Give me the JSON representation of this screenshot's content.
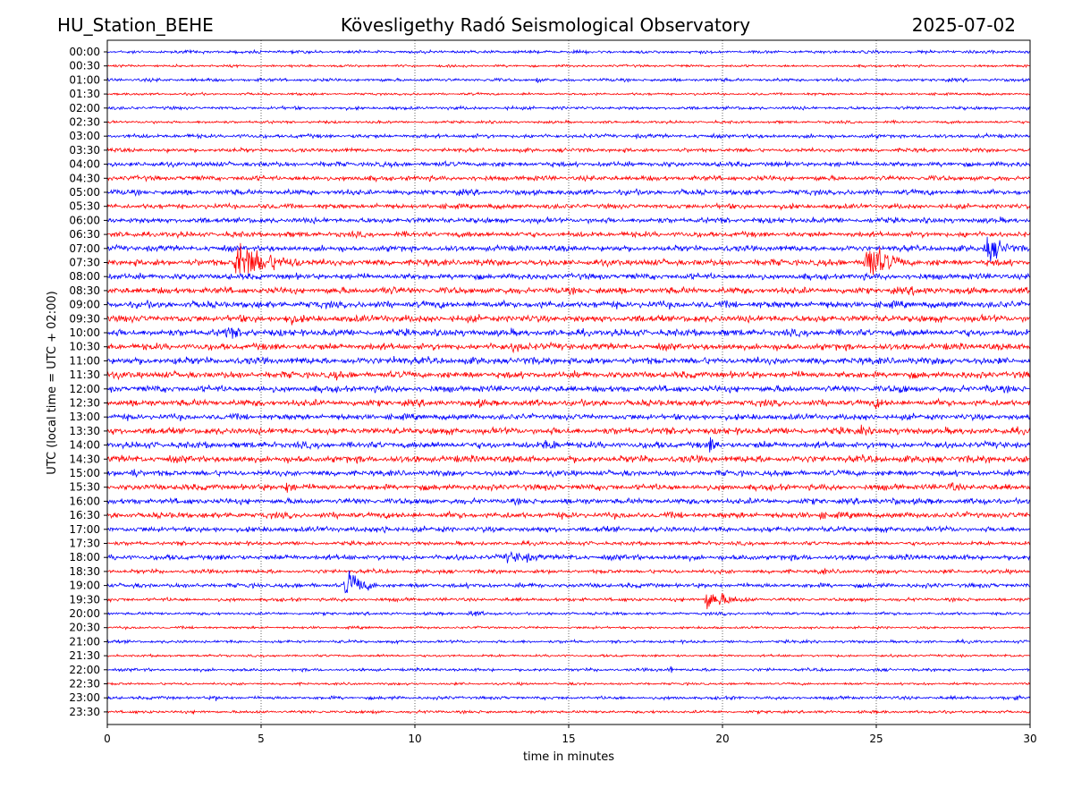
{
  "header": {
    "station": "HU_Station_BEHE",
    "observatory": "Kövesligethy Radó Seismological Observatory",
    "date": "2025-07-02"
  },
  "chart_data": {
    "type": "line",
    "xlabel": "time in minutes",
    "ylabel": "UTC (local time = UTC + 02:00)",
    "xlim": [
      0,
      30
    ],
    "x_ticks": [
      "0",
      "5",
      "10",
      "15",
      "20",
      "25",
      "30"
    ],
    "grid": "vertical dotted lines at x = 5, 10, 15, 20, 25",
    "colors": {
      "even_rows": "#0000ff",
      "odd_rows": "#ff0000"
    },
    "rows": [
      {
        "label": "00:00",
        "color": "blue"
      },
      {
        "label": "00:30",
        "color": "red"
      },
      {
        "label": "01:00",
        "color": "blue"
      },
      {
        "label": "01:30",
        "color": "red"
      },
      {
        "label": "02:00",
        "color": "blue"
      },
      {
        "label": "02:30",
        "color": "red"
      },
      {
        "label": "03:00",
        "color": "blue"
      },
      {
        "label": "03:30",
        "color": "red"
      },
      {
        "label": "04:00",
        "color": "blue"
      },
      {
        "label": "04:30",
        "color": "red"
      },
      {
        "label": "05:00",
        "color": "blue"
      },
      {
        "label": "05:30",
        "color": "red"
      },
      {
        "label": "06:00",
        "color": "blue"
      },
      {
        "label": "06:30",
        "color": "red"
      },
      {
        "label": "07:00",
        "color": "blue"
      },
      {
        "label": "07:30",
        "color": "red"
      },
      {
        "label": "08:00",
        "color": "blue"
      },
      {
        "label": "08:30",
        "color": "red"
      },
      {
        "label": "09:00",
        "color": "blue"
      },
      {
        "label": "09:30",
        "color": "red"
      },
      {
        "label": "10:00",
        "color": "blue"
      },
      {
        "label": "10:30",
        "color": "red"
      },
      {
        "label": "11:00",
        "color": "blue"
      },
      {
        "label": "11:30",
        "color": "red"
      },
      {
        "label": "12:00",
        "color": "blue"
      },
      {
        "label": "12:30",
        "color": "red"
      },
      {
        "label": "13:00",
        "color": "blue"
      },
      {
        "label": "13:30",
        "color": "red"
      },
      {
        "label": "14:00",
        "color": "blue"
      },
      {
        "label": "14:30",
        "color": "red"
      },
      {
        "label": "15:00",
        "color": "blue"
      },
      {
        "label": "15:30",
        "color": "red"
      },
      {
        "label": "16:00",
        "color": "blue"
      },
      {
        "label": "16:30",
        "color": "red"
      },
      {
        "label": "17:00",
        "color": "blue"
      },
      {
        "label": "17:30",
        "color": "red"
      },
      {
        "label": "18:00",
        "color": "blue"
      },
      {
        "label": "18:30",
        "color": "red"
      },
      {
        "label": "19:00",
        "color": "blue"
      },
      {
        "label": "19:30",
        "color": "red"
      },
      {
        "label": "20:00",
        "color": "blue"
      },
      {
        "label": "20:30",
        "color": "red"
      },
      {
        "label": "21:00",
        "color": "blue"
      },
      {
        "label": "21:30",
        "color": "red"
      },
      {
        "label": "22:00",
        "color": "blue"
      },
      {
        "label": "22:30",
        "color": "red"
      },
      {
        "label": "23:00",
        "color": "blue"
      },
      {
        "label": "23:30",
        "color": "red"
      }
    ],
    "noise_level": [
      1.2,
      1.0,
      1.3,
      1.0,
      1.3,
      1.1,
      1.6,
      1.6,
      2.0,
      2.0,
      2.2,
      2.0,
      2.2,
      2.2,
      2.4,
      2.6,
      2.4,
      2.6,
      2.8,
      2.8,
      2.8,
      2.7,
      2.8,
      2.7,
      2.6,
      2.6,
      2.4,
      2.7,
      2.6,
      2.8,
      2.3,
      2.4,
      2.3,
      2.4,
      2.2,
      1.6,
      2.2,
      1.6,
      1.8,
      1.4,
      1.2,
      1.0,
      1.2,
      1.0,
      1.2,
      1.0,
      1.3,
      1.2
    ],
    "events": [
      {
        "row": "01:00",
        "t": 14.0,
        "amplitude": 3,
        "duration": 0.3
      },
      {
        "row": "04:30",
        "t": 7.7,
        "amplitude": 3,
        "duration": 0.5
      },
      {
        "row": "06:30",
        "t": 27.8,
        "amplitude": 4,
        "duration": 1.5
      },
      {
        "row": "07:00",
        "t": 28.6,
        "amplitude": 13,
        "duration": 2.0
      },
      {
        "row": "07:30",
        "t": 4.2,
        "amplitude": 20,
        "duration": 3.5
      },
      {
        "row": "07:30",
        "t": 24.7,
        "amplitude": 22,
        "duration": 2.0
      },
      {
        "row": "08:30",
        "t": 9.0,
        "amplitude": 6,
        "duration": 2.5
      },
      {
        "row": "08:30",
        "t": 16.0,
        "amplitude": 5,
        "duration": 1.0
      },
      {
        "row": "08:30",
        "t": 26.2,
        "amplitude": 5,
        "duration": 3.5
      },
      {
        "row": "09:30",
        "t": 5.8,
        "amplitude": 6,
        "duration": 2.5
      },
      {
        "row": "09:30",
        "t": 9.0,
        "amplitude": 5,
        "duration": 0.6
      },
      {
        "row": "10:00",
        "t": 3.8,
        "amplitude": 7,
        "duration": 3.0
      },
      {
        "row": "10:30",
        "t": 13.2,
        "amplitude": 5,
        "duration": 3.0
      },
      {
        "row": "11:00",
        "t": 2.2,
        "amplitude": 5,
        "duration": 1.0
      },
      {
        "row": "11:00",
        "t": 9.3,
        "amplitude": 5,
        "duration": 2.5
      },
      {
        "row": "11:00",
        "t": 23.5,
        "amplitude": 4,
        "duration": 0.6
      },
      {
        "row": "11:30",
        "t": 7.4,
        "amplitude": 5,
        "duration": 1.5
      },
      {
        "row": "12:00",
        "t": 25.8,
        "amplitude": 6,
        "duration": 1.0
      },
      {
        "row": "12:00",
        "t": 28.6,
        "amplitude": 5,
        "duration": 1.5
      },
      {
        "row": "12:30",
        "t": 12.0,
        "amplitude": 5,
        "duration": 1.5
      },
      {
        "row": "12:30",
        "t": 25.0,
        "amplitude": 6,
        "duration": 1.5
      },
      {
        "row": "13:30",
        "t": 24.5,
        "amplitude": 5,
        "duration": 1.5
      },
      {
        "row": "14:00",
        "t": 14.2,
        "amplitude": 6,
        "duration": 2.5
      },
      {
        "row": "14:00",
        "t": 19.6,
        "amplitude": 9,
        "duration": 1.0
      },
      {
        "row": "14:00",
        "t": 21.2,
        "amplitude": 5,
        "duration": 1.5
      },
      {
        "row": "14:30",
        "t": 29.6,
        "amplitude": 7,
        "duration": 1.0
      },
      {
        "row": "15:00",
        "t": 0.8,
        "amplitude": 7,
        "duration": 0.8
      },
      {
        "row": "15:00",
        "t": 25.4,
        "amplitude": 5,
        "duration": 0.3
      },
      {
        "row": "15:30",
        "t": 2.4,
        "amplitude": 5,
        "duration": 0.6
      },
      {
        "row": "15:30",
        "t": 5.8,
        "amplitude": 6,
        "duration": 1.5
      },
      {
        "row": "15:30",
        "t": 27.4,
        "amplitude": 6,
        "duration": 1.2
      },
      {
        "row": "16:00",
        "t": 25.5,
        "amplitude": 5,
        "duration": 1.5
      },
      {
        "row": "16:00",
        "t": 28.4,
        "amplitude": 5,
        "duration": 1.0
      },
      {
        "row": "16:30",
        "t": 23.2,
        "amplitude": 5,
        "duration": 0.8
      },
      {
        "row": "17:00",
        "t": 9.0,
        "amplitude": 5,
        "duration": 0.8
      },
      {
        "row": "18:00",
        "t": 13.0,
        "amplitude": 6,
        "duration": 4.0
      },
      {
        "row": "18:30",
        "t": 23.2,
        "amplitude": 5,
        "duration": 0.7
      },
      {
        "row": "19:00",
        "t": 7.8,
        "amplitude": 16,
        "duration": 1.5
      },
      {
        "row": "19:30",
        "t": 19.5,
        "amplitude": 10,
        "duration": 2.5
      },
      {
        "row": "20:00",
        "t": 11.8,
        "amplitude": 4,
        "duration": 1.5
      },
      {
        "row": "22:00",
        "t": 4.3,
        "amplitude": 4,
        "duration": 0.4
      },
      {
        "row": "22:00",
        "t": 18.3,
        "amplitude": 5,
        "duration": 0.3
      },
      {
        "row": "23:00",
        "t": 3.5,
        "amplitude": 3,
        "duration": 1.0
      },
      {
        "row": "23:00",
        "t": 29.5,
        "amplitude": 3,
        "duration": 1.0
      }
    ]
  }
}
